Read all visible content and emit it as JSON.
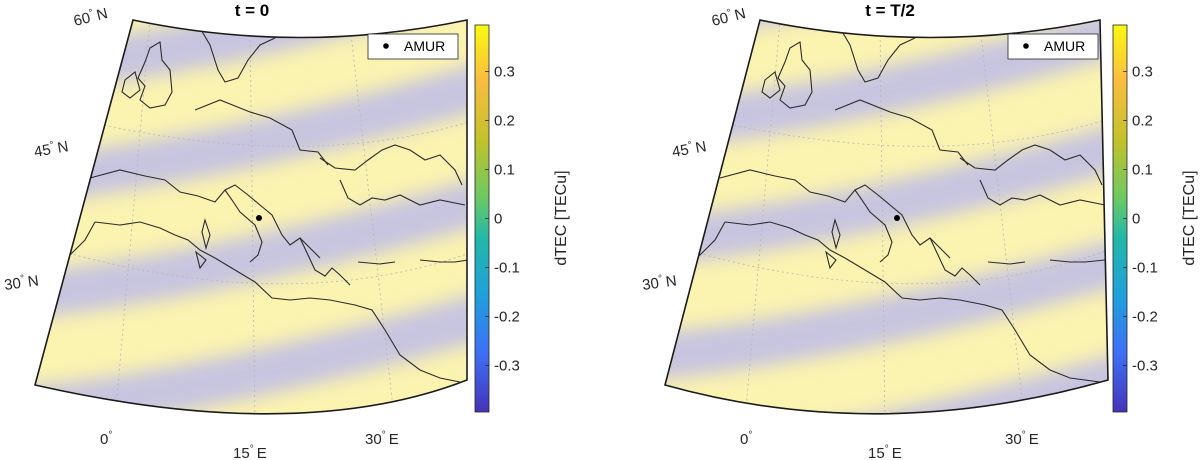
{
  "panels": [
    {
      "title": "t = 0",
      "lat_labels": [
        {
          "deg": "60",
          "hemi": "N"
        },
        {
          "deg": "45",
          "hemi": "N"
        },
        {
          "deg": "30",
          "hemi": "N"
        }
      ],
      "lon_labels": [
        {
          "deg": "0",
          "hemi": ""
        },
        {
          "deg": "15",
          "hemi": "E"
        },
        {
          "deg": "30",
          "hemi": "E"
        }
      ],
      "legend": {
        "label": "AMUR"
      },
      "colorbar": {
        "label": "dTEC [TECu]",
        "ticks": [
          "0.3",
          "0.2",
          "0.1",
          "0",
          "-0.1",
          "-0.2",
          "-0.3"
        ]
      }
    },
    {
      "title": "t = T/2",
      "lat_labels": [
        {
          "deg": "60",
          "hemi": "N"
        },
        {
          "deg": "45",
          "hemi": "N"
        },
        {
          "deg": "30",
          "hemi": "N"
        }
      ],
      "lon_labels": [
        {
          "deg": "0",
          "hemi": ""
        },
        {
          "deg": "15",
          "hemi": "E"
        },
        {
          "deg": "30",
          "hemi": "E"
        }
      ],
      "legend": {
        "label": "AMUR"
      },
      "colorbar": {
        "label": "dTEC [TECu]",
        "ticks": [
          "0.3",
          "0.2",
          "0.1",
          "0",
          "-0.1",
          "-0.2",
          "-0.3"
        ]
      }
    }
  ],
  "colors": {
    "crest": "#fbf3b0",
    "trough": "#c1bfe6",
    "coast": "#2b2b2b",
    "colormap": [
      "#f9fb0e",
      "#fbbd3f",
      "#c1c22a",
      "#6ac964",
      "#21b8a8",
      "#1fa0dc",
      "#3e6ff5",
      "#4533b8"
    ]
  }
}
